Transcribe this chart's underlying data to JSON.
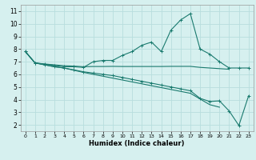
{
  "xlabel": "Humidex (Indice chaleur)",
  "background_color": "#d6f0ef",
  "grid_color": "#b8dede",
  "line_color": "#1a7a6e",
  "xlim": [
    -0.5,
    23.5
  ],
  "ylim": [
    1.5,
    11.5
  ],
  "xticks": [
    0,
    1,
    2,
    3,
    4,
    5,
    6,
    7,
    8,
    9,
    10,
    11,
    12,
    13,
    14,
    15,
    16,
    17,
    18,
    19,
    20,
    21,
    22,
    23
  ],
  "yticks": [
    2,
    3,
    4,
    5,
    6,
    7,
    8,
    9,
    10,
    11
  ],
  "line1_x": [
    0,
    1,
    2,
    3,
    4,
    5,
    6,
    7,
    8,
    9,
    10,
    11,
    12,
    13,
    14,
    15,
    16,
    17,
    18,
    19,
    20,
    21,
    22,
    23
  ],
  "line1_y": [
    7.8,
    6.9,
    6.8,
    6.7,
    6.6,
    6.6,
    6.55,
    7.0,
    7.1,
    7.1,
    7.5,
    7.8,
    8.3,
    8.55,
    7.8,
    9.5,
    10.3,
    10.8,
    8.0,
    7.6,
    7.0,
    6.5,
    6.5,
    6.5
  ],
  "line2_x": [
    0,
    1,
    2,
    3,
    4,
    5,
    6,
    7,
    8,
    9,
    10,
    11,
    12,
    13,
    14,
    15,
    16,
    17,
    18,
    19,
    20,
    21
  ],
  "line2_y": [
    7.8,
    6.9,
    6.82,
    6.75,
    6.68,
    6.65,
    6.6,
    6.62,
    6.62,
    6.63,
    6.62,
    6.62,
    6.62,
    6.62,
    6.62,
    6.63,
    6.63,
    6.63,
    6.55,
    6.5,
    6.45,
    6.4
  ],
  "line3_x": [
    0,
    1,
    2,
    3,
    4,
    5,
    6,
    7,
    8,
    9,
    10,
    11,
    12,
    13,
    14,
    15,
    16,
    17,
    18,
    19,
    20,
    21,
    22,
    23
  ],
  "line3_y": [
    7.8,
    6.9,
    6.75,
    6.6,
    6.5,
    6.35,
    6.2,
    6.1,
    6.0,
    5.9,
    5.75,
    5.6,
    5.45,
    5.3,
    5.15,
    5.0,
    4.85,
    4.7,
    4.1,
    3.85,
    3.9,
    3.1,
    1.95,
    4.3
  ],
  "line4_x": [
    0,
    1,
    2,
    3,
    4,
    5,
    6,
    7,
    8,
    9,
    10,
    11,
    12,
    13,
    14,
    15,
    16,
    17,
    18,
    19,
    20
  ],
  "line4_y": [
    7.8,
    6.9,
    6.75,
    6.6,
    6.5,
    6.32,
    6.15,
    6.0,
    5.85,
    5.7,
    5.55,
    5.4,
    5.25,
    5.1,
    4.95,
    4.8,
    4.65,
    4.5,
    4.05,
    3.6,
    3.4
  ]
}
